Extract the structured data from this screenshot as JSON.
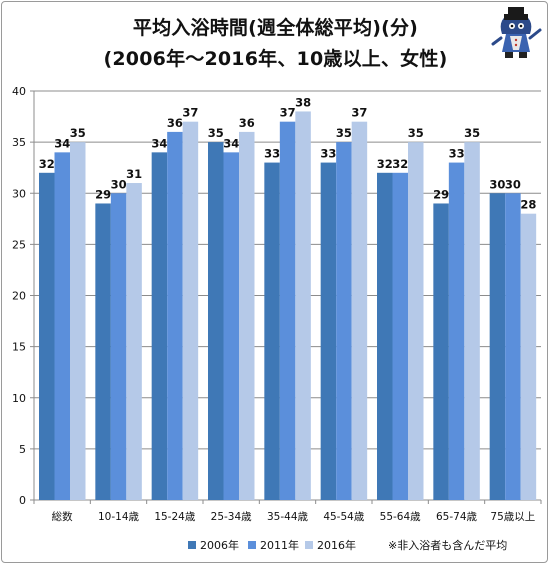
{
  "title_line1": "平均入浴時間(週全体総平均)(分)",
  "title_line2": "(2006年～2016年、10歳以上、女性)",
  "note": "※非入浴者も含んだ平均",
  "colors": {
    "s2006": "#3f78b6",
    "s2011": "#5b8fdb",
    "s2016": "#b5c9e8"
  },
  "chart_data": {
    "type": "bar",
    "title": "平均入浴時間(週全体総平均)(分) (2006年～2016年、10歳以上、女性)",
    "categories": [
      "総数",
      "10-14歳",
      "15-24歳",
      "25-34歳",
      "35-44歳",
      "45-54歳",
      "55-64歳",
      "65-74歳",
      "75歳以上"
    ],
    "series": [
      {
        "name": "2006年",
        "values": [
          32,
          29,
          34,
          35,
          33,
          33,
          32,
          29,
          30
        ]
      },
      {
        "name": "2011年",
        "values": [
          34,
          30,
          36,
          34,
          37,
          35,
          32,
          33,
          30
        ]
      },
      {
        "name": "2016年",
        "values": [
          35,
          31,
          37,
          36,
          38,
          37,
          35,
          35,
          28
        ]
      }
    ],
    "ylim": [
      0,
      40
    ],
    "yticks": [
      0,
      5,
      10,
      15,
      20,
      25,
      30,
      35,
      40
    ],
    "grid": true,
    "legend_position": "bottom"
  }
}
